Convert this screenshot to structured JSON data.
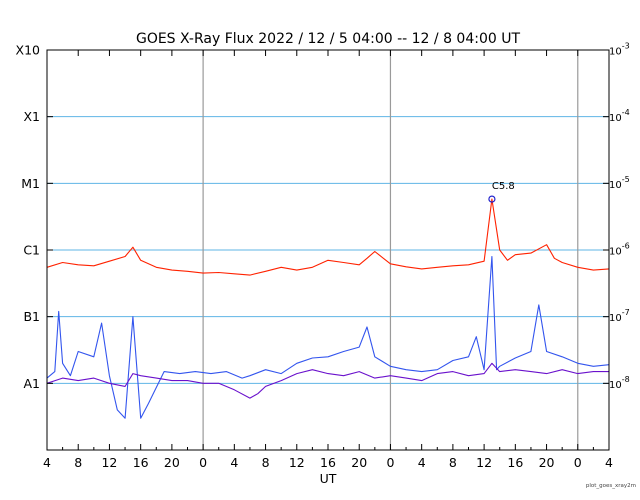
{
  "chart_data": {
    "type": "line",
    "title": "GOES X-Ray Flux   2022 / 12 /  5   04:00 -- 12 /  8   04:00   UT",
    "xlabel": "UT",
    "credit": "plot_goes_xray2m",
    "x_tick_labels": [
      "4",
      "8",
      "12",
      "16",
      "20",
      "0",
      "4",
      "8",
      "12",
      "16",
      "20",
      "0",
      "4",
      "8",
      "12",
      "16",
      "20",
      "0",
      "4"
    ],
    "x_range_hours": [
      0,
      72
    ],
    "day_boundaries_hours": [
      20,
      44,
      68
    ],
    "y_scale": "log",
    "y_range": [
      1e-09,
      0.001
    ],
    "left_axis_labels": [
      {
        "label": "X10",
        "value": 0.001
      },
      {
        "label": "X1",
        "value": 0.0001
      },
      {
        "label": "M1",
        "value": 1e-05
      },
      {
        "label": "C1",
        "value": 1e-06
      },
      {
        "label": "B1",
        "value": 1e-07
      },
      {
        "label": "A1",
        "value": 1e-08
      }
    ],
    "right_axis_labels": [
      {
        "base": "10",
        "exp": "-3",
        "value": 0.001
      },
      {
        "base": "10",
        "exp": "-4",
        "value": 0.0001
      },
      {
        "base": "10",
        "exp": "-5",
        "value": 1e-05
      },
      {
        "base": "10",
        "exp": "-6",
        "value": 1e-06
      },
      {
        "base": "10",
        "exp": "-7",
        "value": 1e-07
      },
      {
        "base": "10",
        "exp": "-8",
        "value": 1e-08
      }
    ],
    "gridlines": [
      0.0001,
      1e-05,
      1e-06,
      1e-07,
      1e-08
    ],
    "annotation": {
      "text": "C5.8",
      "x_hour": 57.0,
      "y": 5.8e-06
    },
    "series": [
      {
        "color": "#ff2200",
        "points": [
          [
            0,
            5.5e-07
          ],
          [
            2,
            6.5e-07
          ],
          [
            4,
            6e-07
          ],
          [
            6,
            5.8e-07
          ],
          [
            8,
            6.8e-07
          ],
          [
            10,
            8e-07
          ],
          [
            11,
            1.1e-06
          ],
          [
            12,
            7e-07
          ],
          [
            14,
            5.5e-07
          ],
          [
            16,
            5e-07
          ],
          [
            18,
            4.8e-07
          ],
          [
            20,
            4.5e-07
          ],
          [
            22,
            4.6e-07
          ],
          [
            24,
            4.4e-07
          ],
          [
            26,
            4.2e-07
          ],
          [
            28,
            4.8e-07
          ],
          [
            30,
            5.5e-07
          ],
          [
            32,
            5e-07
          ],
          [
            34,
            5.5e-07
          ],
          [
            36,
            7e-07
          ],
          [
            38,
            6.5e-07
          ],
          [
            40,
            6e-07
          ],
          [
            41,
            7.5e-07
          ],
          [
            42,
            9.5e-07
          ],
          [
            44,
            6.2e-07
          ],
          [
            46,
            5.6e-07
          ],
          [
            48,
            5.2e-07
          ],
          [
            50,
            5.5e-07
          ],
          [
            52,
            5.8e-07
          ],
          [
            54,
            6e-07
          ],
          [
            56,
            6.8e-07
          ],
          [
            57,
            5.8e-06
          ],
          [
            58,
            1e-06
          ],
          [
            59,
            7e-07
          ],
          [
            60,
            8.5e-07
          ],
          [
            62,
            9e-07
          ],
          [
            64,
            1.2e-06
          ],
          [
            65,
            7.5e-07
          ],
          [
            66,
            6.5e-07
          ],
          [
            68,
            5.5e-07
          ],
          [
            70,
            5e-07
          ],
          [
            72,
            5.2e-07
          ]
        ]
      },
      {
        "color": "#3355ee",
        "points": [
          [
            0,
            1.2e-08
          ],
          [
            1,
            1.5e-08
          ],
          [
            1.5,
            1.2e-07
          ],
          [
            2,
            2e-08
          ],
          [
            3,
            1.3e-08
          ],
          [
            4,
            3e-08
          ],
          [
            6,
            2.5e-08
          ],
          [
            7,
            8e-08
          ],
          [
            8,
            1.3e-08
          ],
          [
            9,
            4e-09
          ],
          [
            10,
            3e-09
          ],
          [
            11,
            1e-07
          ],
          [
            12,
            3e-09
          ],
          [
            13,
            5e-09
          ],
          [
            15,
            1.5e-08
          ],
          [
            17,
            1.4e-08
          ],
          [
            19,
            1.5e-08
          ],
          [
            21,
            1.4e-08
          ],
          [
            23,
            1.5e-08
          ],
          [
            25,
            1.2e-08
          ],
          [
            26,
            1.3e-08
          ],
          [
            28,
            1.6e-08
          ],
          [
            30,
            1.4e-08
          ],
          [
            32,
            2e-08
          ],
          [
            34,
            2.4e-08
          ],
          [
            36,
            2.5e-08
          ],
          [
            38,
            3e-08
          ],
          [
            40,
            3.5e-08
          ],
          [
            41,
            7e-08
          ],
          [
            42,
            2.5e-08
          ],
          [
            44,
            1.8e-08
          ],
          [
            46,
            1.6e-08
          ],
          [
            48,
            1.5e-08
          ],
          [
            50,
            1.6e-08
          ],
          [
            52,
            2.2e-08
          ],
          [
            54,
            2.5e-08
          ],
          [
            55,
            5e-08
          ],
          [
            56,
            1.6e-08
          ],
          [
            57,
            8e-07
          ],
          [
            57.6,
            1.6e-08
          ],
          [
            58,
            1.8e-08
          ],
          [
            60,
            2.4e-08
          ],
          [
            62,
            3e-08
          ],
          [
            63,
            1.5e-07
          ],
          [
            64,
            3e-08
          ],
          [
            66,
            2.5e-08
          ],
          [
            68,
            2e-08
          ],
          [
            70,
            1.8e-08
          ],
          [
            72,
            1.9e-08
          ]
        ]
      },
      {
        "color": "#6a11cc",
        "points": [
          [
            0,
            1e-08
          ],
          [
            2,
            1.2e-08
          ],
          [
            4,
            1.1e-08
          ],
          [
            6,
            1.2e-08
          ],
          [
            8,
            1e-08
          ],
          [
            10,
            9e-09
          ],
          [
            11,
            1.4e-08
          ],
          [
            12,
            1.3e-08
          ],
          [
            14,
            1.2e-08
          ],
          [
            16,
            1.1e-08
          ],
          [
            18,
            1.1e-08
          ],
          [
            20,
            1e-08
          ],
          [
            22,
            1e-08
          ],
          [
            24,
            8e-09
          ],
          [
            26,
            6e-09
          ],
          [
            27,
            7e-09
          ],
          [
            28,
            9e-09
          ],
          [
            30,
            1.1e-08
          ],
          [
            32,
            1.4e-08
          ],
          [
            34,
            1.6e-08
          ],
          [
            36,
            1.4e-08
          ],
          [
            38,
            1.3e-08
          ],
          [
            40,
            1.5e-08
          ],
          [
            42,
            1.2e-08
          ],
          [
            44,
            1.3e-08
          ],
          [
            46,
            1.2e-08
          ],
          [
            48,
            1.1e-08
          ],
          [
            50,
            1.4e-08
          ],
          [
            52,
            1.5e-08
          ],
          [
            54,
            1.3e-08
          ],
          [
            56,
            1.4e-08
          ],
          [
            57,
            2e-08
          ],
          [
            58,
            1.5e-08
          ],
          [
            60,
            1.6e-08
          ],
          [
            62,
            1.5e-08
          ],
          [
            64,
            1.4e-08
          ],
          [
            66,
            1.6e-08
          ],
          [
            68,
            1.4e-08
          ],
          [
            70,
            1.5e-08
          ],
          [
            72,
            1.5e-08
          ]
        ]
      }
    ]
  }
}
